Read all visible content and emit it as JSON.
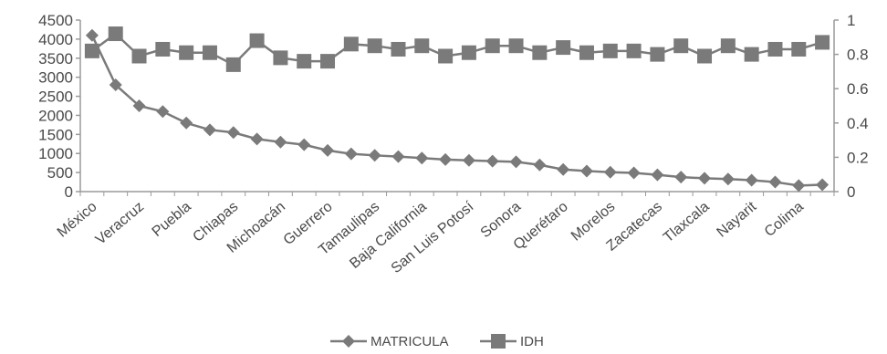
{
  "chart_data": {
    "type": "line",
    "title": "",
    "xlabel": "",
    "ylabel": "",
    "y2label": "",
    "grid": false,
    "legend_position": "bottom",
    "colors": {
      "line": "#7a7a7a",
      "axis": "#9a9a9a",
      "text": "#4a4a4a"
    },
    "categories": [
      "México",
      "",
      "Veracruz",
      "",
      "Puebla",
      "",
      "Chiapas",
      "",
      "Michoacán",
      "",
      "Guerrero",
      "",
      "Tamaulipas",
      "",
      "Baja California",
      "",
      "San Luis Potosí",
      "",
      "Sonora",
      "",
      "Querétaro",
      "",
      "Morelos",
      "",
      "Zacatecas",
      "",
      "Tlaxcala",
      "",
      "Nayarit",
      "",
      "Colima",
      ""
    ],
    "y_axis": {
      "min": 0,
      "max": 4500,
      "ticks": [
        "0",
        "500",
        "1000",
        "1500",
        "2000",
        "2500",
        "3000",
        "3500",
        "4000",
        "4500"
      ]
    },
    "y2_axis": {
      "min": 0,
      "max": 1,
      "ticks": [
        "0",
        "0.2",
        "0.4",
        "0.6",
        "0.8",
        "1"
      ]
    },
    "series": [
      {
        "name": "MATRICULA",
        "axis": "left",
        "marker": "diamond",
        "values": [
          4100,
          2800,
          2250,
          2100,
          1800,
          1620,
          1550,
          1380,
          1300,
          1230,
          1080,
          990,
          950,
          920,
          880,
          840,
          820,
          800,
          780,
          700,
          580,
          540,
          510,
          490,
          440,
          380,
          350,
          330,
          300,
          250,
          160,
          180
        ]
      },
      {
        "name": "IDH",
        "axis": "right",
        "marker": "square",
        "values": [
          0.82,
          0.92,
          0.79,
          0.83,
          0.81,
          0.81,
          0.74,
          0.88,
          0.78,
          0.76,
          0.76,
          0.86,
          0.85,
          0.83,
          0.85,
          0.79,
          0.81,
          0.85,
          0.85,
          0.81,
          0.84,
          0.81,
          0.82,
          0.82,
          0.8,
          0.85,
          0.79,
          0.85,
          0.8,
          0.83,
          0.83,
          0.87
        ]
      }
    ]
  }
}
